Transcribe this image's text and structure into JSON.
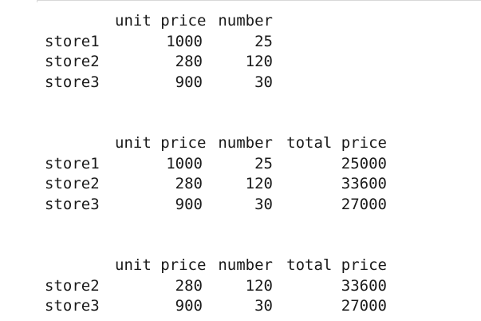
{
  "tables": [
    {
      "columns": [
        "unit price",
        "number"
      ],
      "rows": [
        {
          "index": "store1",
          "unit_price": "1000",
          "number": "25"
        },
        {
          "index": "store2",
          "unit_price": "280",
          "number": "120"
        },
        {
          "index": "store3",
          "unit_price": "900",
          "number": "30"
        }
      ]
    },
    {
      "columns": [
        "unit price",
        "number",
        "total price"
      ],
      "rows": [
        {
          "index": "store1",
          "unit_price": "1000",
          "number": "25",
          "total_price": "25000"
        },
        {
          "index": "store2",
          "unit_price": "280",
          "number": "120",
          "total_price": "33600"
        },
        {
          "index": "store3",
          "unit_price": "900",
          "number": "30",
          "total_price": "27000"
        }
      ]
    },
    {
      "columns": [
        "unit price",
        "number",
        "total price"
      ],
      "rows": [
        {
          "index": "store2",
          "unit_price": "280",
          "number": "120",
          "total_price": "33600"
        },
        {
          "index": "store3",
          "unit_price": "900",
          "number": "30",
          "total_price": "27000"
        }
      ]
    }
  ]
}
